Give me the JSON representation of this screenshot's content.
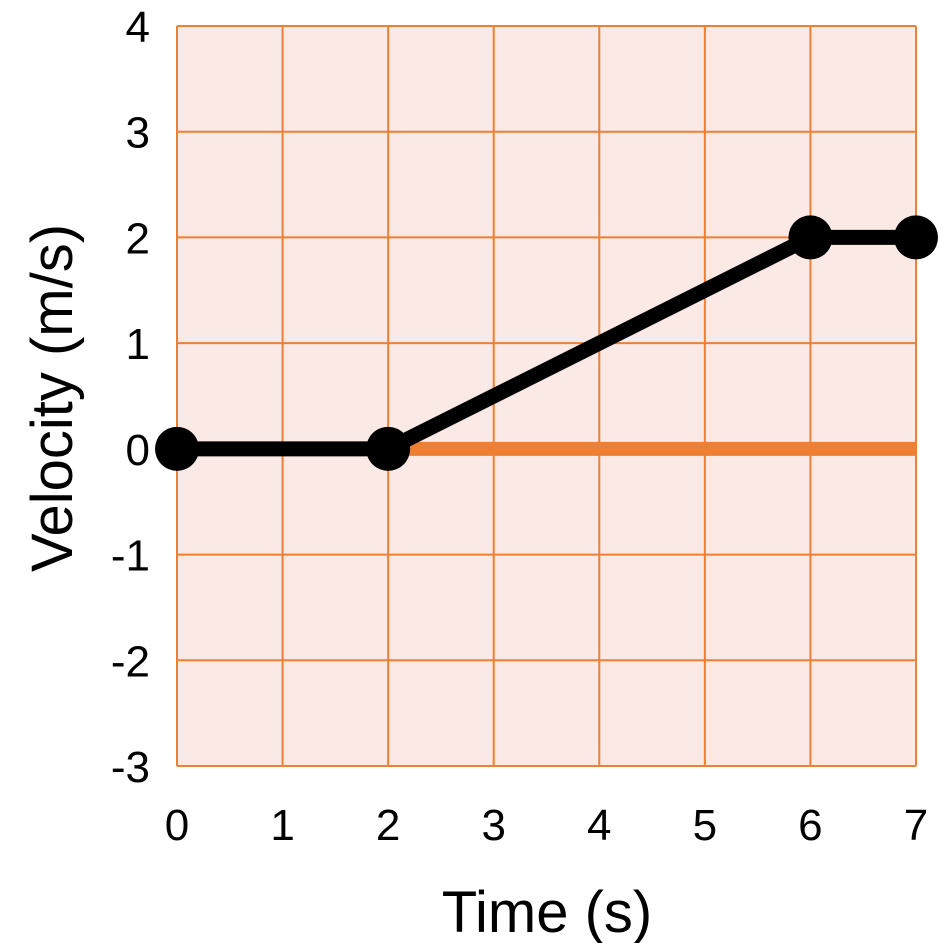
{
  "chart_data": {
    "type": "line",
    "xlabel": "Time (s)",
    "ylabel": "Velocity (m/s)",
    "xlim": [
      0,
      7
    ],
    "ylim": [
      -3,
      4
    ],
    "x_ticks": [
      "0",
      "1",
      "2",
      "3",
      "4",
      "5",
      "6",
      "7"
    ],
    "y_ticks": [
      "4",
      "3",
      "2",
      "1",
      "0",
      "-1",
      "-2",
      "-3"
    ],
    "grid": true,
    "series": [
      {
        "points": [
          {
            "x": 0,
            "y": 0
          },
          {
            "x": 2,
            "y": 0
          },
          {
            "x": 6,
            "y": 2
          },
          {
            "x": 7,
            "y": 2
          }
        ]
      }
    ],
    "reference_line": {
      "from_x": 2,
      "to_x": 7,
      "y": 0
    },
    "colors": {
      "plot_background": "#fbe9e5",
      "grid": "#ee7f33",
      "reference_line": "#ee7f33",
      "series": "#000000"
    }
  }
}
